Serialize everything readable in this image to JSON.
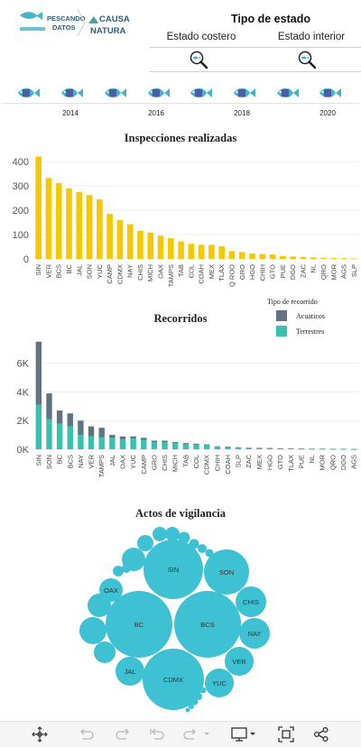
{
  "header": {
    "logo_left": "PESCANDO DATOS",
    "logo_right": "CAUSA NATURA",
    "filter_title": "Tipo de estado",
    "filter_options": [
      "Estado costero",
      "Estado interior"
    ]
  },
  "timeline": {
    "years": [
      "2014",
      "2016",
      "2018",
      "2020"
    ],
    "fish_count": 8
  },
  "colors": {
    "yellow": "#f5c800",
    "dark": "#5f7480",
    "teal": "#36c2ae",
    "bubble": "#3ec1d3",
    "fish": "#4bb3c8"
  },
  "chart_data": [
    {
      "type": "bar",
      "title": "Inspecciones  realizadas",
      "categories": [
        "SIN",
        "VER",
        "BCS",
        "BC",
        "JAL",
        "SON",
        "YUC",
        "CAMP",
        "CDMX",
        "NAY",
        "CHIS",
        "MICH",
        "OAX",
        "TAMPS",
        "TAB",
        "COL",
        "COAH",
        "MEX",
        "TLAX",
        "Q ROO",
        "GRO",
        "HGO",
        "CHIH",
        "GTO",
        "PUE",
        "DGO",
        "ZAC",
        "NL",
        "QRO",
        "MOR",
        "AGS",
        "SLP"
      ],
      "values": [
        420,
        332,
        312,
        290,
        275,
        262,
        245,
        185,
        160,
        143,
        115,
        108,
        95,
        85,
        72,
        62,
        58,
        58,
        52,
        32,
        28,
        22,
        20,
        18,
        12,
        10,
        8,
        6,
        5,
        4,
        3,
        2
      ],
      "yticks": [
        0,
        100,
        200,
        300,
        400
      ],
      "ylim": [
        0,
        430
      ]
    },
    {
      "type": "bar",
      "stacked": true,
      "title": "Recorridos",
      "legend_title": "Tipo de recorrido",
      "categories": [
        "SIN",
        "SON",
        "BC",
        "BCS",
        "NAY",
        "VER",
        "TAMPS",
        "JAL",
        "OAX",
        "YUC",
        "CAMP",
        "GRO",
        "CHIS",
        "MICH",
        "TAB",
        "COL",
        "CDMX",
        "CHIH",
        "COAH",
        "SLP",
        "ZAC",
        "MEX",
        "HGO",
        "GTO",
        "TLAX",
        "PUE",
        "NL",
        "MOR",
        "QRO",
        "DGO",
        "AGS"
      ],
      "series": [
        {
          "name": "Acuaticos",
          "values": [
            4400,
            1800,
            900,
            900,
            1000,
            700,
            650,
            200,
            200,
            150,
            150,
            100,
            100,
            80,
            80,
            70,
            60,
            30,
            30,
            20,
            20,
            20,
            20,
            10,
            10,
            10,
            10,
            10,
            10,
            10,
            10
          ]
        },
        {
          "name": "Terrestres",
          "values": [
            3100,
            2100,
            1800,
            1600,
            1000,
            900,
            850,
            800,
            700,
            750,
            650,
            500,
            500,
            420,
            350,
            320,
            280,
            180,
            160,
            120,
            90,
            80,
            70,
            60,
            50,
            40,
            30,
            30,
            20,
            20,
            10
          ]
        }
      ],
      "ytick_labels": [
        "0K",
        "2K",
        "4K",
        "6K"
      ],
      "yticks": [
        0,
        2000,
        4000,
        6000
      ],
      "ylim": [
        0,
        7800
      ]
    },
    {
      "type": "bubble",
      "title": "Actos  de  vigilancia",
      "labeled": [
        "SIN",
        "BC",
        "BCS",
        "CDMX",
        "SON",
        "CHIS",
        "NAY",
        "VER",
        "YUC",
        "JAL",
        "OAX"
      ]
    }
  ]
}
